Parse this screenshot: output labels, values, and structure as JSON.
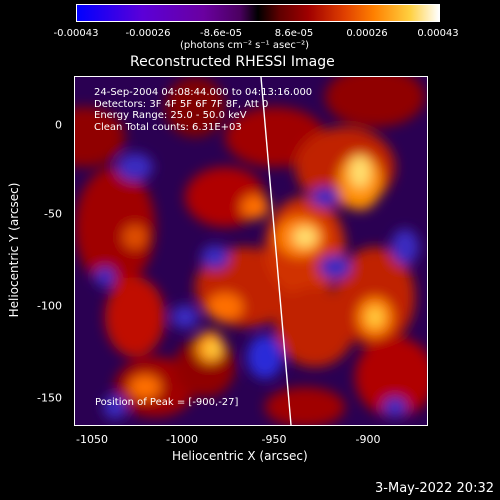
{
  "colorbar": {
    "ticks": [
      "-0.00043",
      "-0.00026",
      "-8.6e-05",
      "8.6e-05",
      "0.00026",
      "0.00043"
    ],
    "unit_label": "(photons cm⁻² s⁻¹ asec⁻²)",
    "colors": [
      "#0000ff",
      "#6a00a0",
      "#000000",
      "#a00000",
      "#ff8000",
      "#ffffff"
    ]
  },
  "title": "Reconstructed RHESSI Image",
  "info_lines": [
    "24-Sep-2004 04:08:44.000 to 04:13:16.000",
    "Detectors: 3F 4F 5F 6F 7F 8F, Att 0",
    "Energy Range: 25.0 - 50.0 keV",
    "Clean    Total counts: 6.31E+03"
  ],
  "peak_text": "Position of Peak = [-900,-27]",
  "x_axis": {
    "label": "Heliocentric X (arcsec)",
    "ticks": [
      "-1050",
      "-1000",
      "-950",
      "-900"
    ]
  },
  "y_axis": {
    "label": "Heliocentric Y (arcsec)",
    "ticks": [
      "0",
      "-50",
      "-100",
      "-150"
    ]
  },
  "date_stamp": "3-May-2022 20:32"
}
